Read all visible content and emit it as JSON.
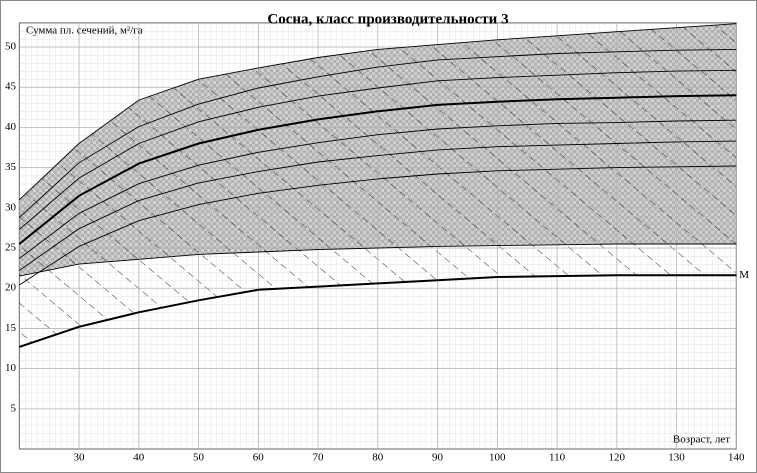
{
  "chart_data": {
    "type": "line",
    "title": "Сосна, класс производительности 3",
    "y_label": "Сумма пл. сечений, м²/га",
    "x_label": "Возраст, лет",
    "annotation": "M",
    "x": [
      20,
      30,
      40,
      50,
      60,
      70,
      80,
      90,
      100,
      110,
      120,
      130,
      140
    ],
    "xlim": [
      20,
      140
    ],
    "xticks": [
      30,
      40,
      50,
      60,
      70,
      80,
      90,
      100,
      110,
      120,
      130,
      140
    ],
    "ylim": [
      0,
      53
    ],
    "yticks": [
      5,
      10,
      15,
      20,
      25,
      30,
      35,
      40,
      45,
      50
    ],
    "grid": true,
    "series": [
      {
        "color": "#000000",
        "values": [
          31,
          38,
          43.4,
          46,
          47.4,
          48.7,
          49.7,
          50.3,
          50.9,
          51.4,
          51.9,
          52.4,
          52.9
        ]
      },
      {
        "color": "#000000",
        "values": [
          28.8,
          35.6,
          40.1,
          42.9,
          44.9,
          46.3,
          47.5,
          48.4,
          48.8,
          49.2,
          49.4,
          49.6,
          49.7
        ]
      },
      {
        "color": "#000000",
        "values": [
          27.3,
          33.7,
          38,
          40.7,
          42.5,
          43.9,
          44.9,
          45.8,
          46.2,
          46.5,
          46.8,
          47,
          47.1
        ]
      },
      {
        "color": "#000000",
        "values": [
          25.5,
          31.5,
          35.5,
          38,
          39.7,
          41,
          42,
          42.8,
          43.2,
          43.5,
          43.7,
          43.9,
          44
        ]
      },
      {
        "color": "#000000",
        "values": [
          23.7,
          29.3,
          33,
          35.3,
          36.9,
          38.1,
          39.1,
          39.8,
          40.2,
          40.5,
          40.6,
          40.8,
          40.9
        ]
      },
      {
        "color": "#000000",
        "values": [
          22.2,
          27.4,
          30.9,
          33.1,
          34.5,
          35.7,
          36.5,
          37.2,
          37.6,
          37.8,
          38,
          38.2,
          38.3
        ]
      },
      {
        "color": "#000000",
        "values": [
          20.4,
          25.2,
          28.4,
          30.4,
          31.8,
          32.8,
          33.6,
          34.2,
          34.6,
          34.8,
          35,
          35.1,
          35.2
        ]
      },
      {
        "color": "#000000",
        "values": [
          21.5,
          23,
          23.6,
          24.2,
          24.5,
          24.8,
          25,
          25.2,
          25.3,
          25.4,
          25.5,
          25.5,
          25.5
        ]
      },
      {
        "color": "#000000",
        "values": [
          12.7,
          15.2,
          17,
          18.5,
          19.8,
          20.2,
          20.6,
          21,
          21.4,
          21.5,
          21.6,
          21.6,
          21.6
        ]
      }
    ]
  }
}
